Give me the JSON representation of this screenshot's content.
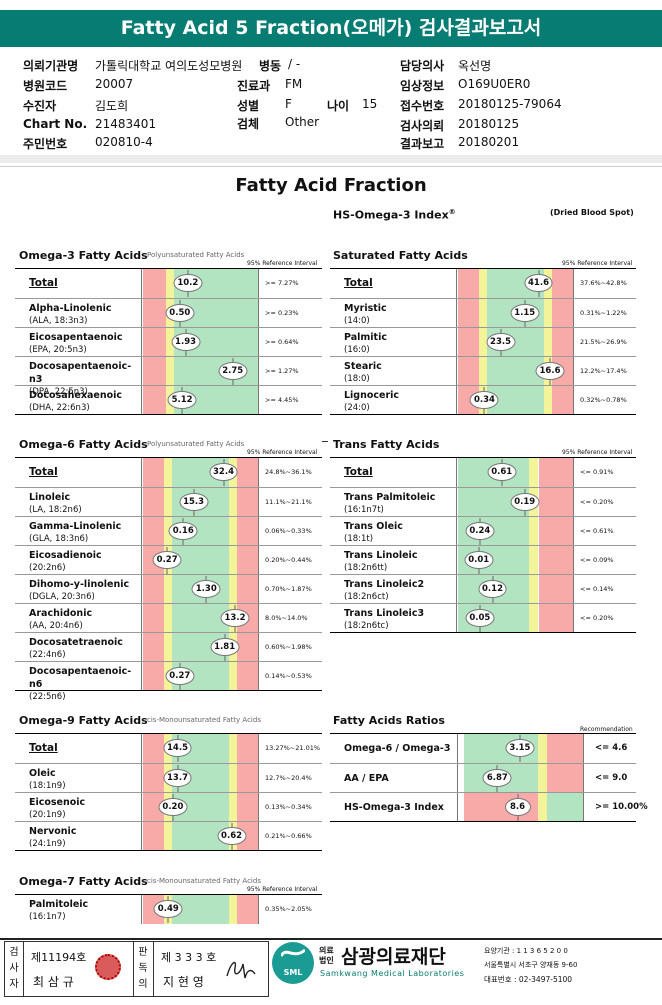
{
  "header": {
    "title": "Fatty Acid 5 Fraction(오메가) 검사결과보고서"
  },
  "patient": {
    "institution_label": "의뢰기관명",
    "institution_value": "가톨릭대학교 여의도성모병원",
    "ward_label": "병동",
    "ward_value": "/ -",
    "doctor_label": "담당의사",
    "doctor_value": "옥선명",
    "hosp_code_label": "병원코드",
    "hosp_code_value": "20007",
    "dept_label": "진료과",
    "dept_value": "FM",
    "clinical_label": "임상정보",
    "clinical_value": "O169U0ER0",
    "examinee_label": "수진자",
    "examinee_value": "김도희",
    "sex_label": "성별",
    "sex_value": "F",
    "age_label": "나이",
    "age_value": "15",
    "receipt_label": "접수번호",
    "receipt_value": "20180125-79064",
    "chart_label": "Chart No.",
    "chart_value": "21483401",
    "specimen_label": "검체",
    "specimen_value": "Other",
    "request_label": "검사의뢰",
    "request_value": "20180125",
    "ssn_label": "주민번호",
    "ssn_value": "020810-4",
    "report_label": "결과보고",
    "report_value": "20180201"
  },
  "report": {
    "title": "Fatty Acid Fraction",
    "hs_index": "HS-Omega-3 Index",
    "hs_sup": "®",
    "dried": "(Dried Blood Spot)",
    "ref_label": "95% Reference Interval",
    "ref_label2": "Recommendation"
  },
  "colors": {
    "red": "#f7aaa8",
    "green": "#b2e4c2",
    "yellow": "#f3f39a",
    "teal": "#077c72"
  },
  "sections": {
    "omega3": {
      "title": "Omega-3 Fatty Acids",
      "subtitle": "Polyunsaturated Fatty Acids",
      "rows": [
        {
          "name": "Total",
          "abbr": "",
          "value": "10.2",
          "range": ">= 7.27%",
          "pos": 0.39,
          "zones": "gh"
        },
        {
          "name": "Alpha-Linolenic",
          "abbr": "(ALA, 18:3n3)",
          "value": "0.50",
          "range": ">= 0.23%",
          "pos": 0.32,
          "zones": "gh"
        },
        {
          "name": "Eicosapentaenoic",
          "abbr": "(EPA, 20:5n3)",
          "value": "1.93",
          "range": ">= 0.64%",
          "pos": 0.37,
          "zones": "gh"
        },
        {
          "name": "Docosapentaenoic-n3",
          "abbr": "(DPA, 22:5n3)",
          "value": "2.75",
          "range": ">= 1.27%",
          "pos": 0.78,
          "zones": "gh"
        },
        {
          "name": "Docosahexaenoic",
          "abbr": "(DHA, 22:6n3)",
          "value": "5.12",
          "range": ">= 4.45%",
          "pos": 0.34,
          "zones": "gh"
        }
      ]
    },
    "sat": {
      "title": "Saturated Fatty Acids",
      "rows": [
        {
          "name": "Total",
          "abbr": "",
          "value": "41.6",
          "range": "37.6%~42.8%",
          "pos": 0.7,
          "zones": "mid"
        },
        {
          "name": "Myristic",
          "abbr": "(14:0)",
          "value": "1.15",
          "range": "0.31%~1.22%",
          "pos": 0.58,
          "zones": "mid"
        },
        {
          "name": "Palmitic",
          "abbr": "(16:0)",
          "value": "23.5",
          "range": "21.5%~26.9%",
          "pos": 0.37,
          "zones": "mid"
        },
        {
          "name": "Stearic",
          "abbr": "(18:0)",
          "value": "16.6",
          "range": "12.2%~17.4%",
          "pos": 0.8,
          "zones": "mid"
        },
        {
          "name": "Lignoceric",
          "abbr": "(24:0)",
          "value": "0.34",
          "range": "0.32%~0.78%",
          "pos": 0.23,
          "zones": "mid"
        }
      ]
    },
    "omega6": {
      "title": "Omega-6 Fatty Acids",
      "subtitle": "Polyunsaturated Fatty Acids",
      "rows": [
        {
          "name": "Total",
          "abbr": "",
          "value": "32.4",
          "range": "24.8%~36.1%",
          "pos": 0.7,
          "zones": "mid"
        },
        {
          "name": "Linoleic",
          "abbr": "(LA, 18:2n6)",
          "value": "15.3",
          "range": "11.1%~21.1%",
          "pos": 0.44,
          "zones": "mid"
        },
        {
          "name": "Gamma-Linolenic",
          "abbr": "(GLA, 18:3n6)",
          "value": "0.16",
          "range": "0.06%~0.33%",
          "pos": 0.35,
          "zones": "mid"
        },
        {
          "name": "Eicosadienoic",
          "abbr": "(20:2n6)",
          "value": "0.27",
          "range": "0.20%~0.44%",
          "pos": 0.21,
          "zones": "mid"
        },
        {
          "name": "Dihomo-y-linolenic",
          "abbr": "(DGLA, 20:3n6)",
          "value": "1.30",
          "range": "0.70%~1.87%",
          "pos": 0.55,
          "zones": "mid"
        },
        {
          "name": "Arachidonic",
          "abbr": "(AA, 20:4n6)",
          "value": "13.2",
          "range": "8.0%~14.0%",
          "pos": 0.8,
          "zones": "mid"
        },
        {
          "name": "Docosatetraenoic",
          "abbr": "(22:4n6)",
          "value": "1.81",
          "range": "0.60%~1.98%",
          "pos": 0.71,
          "zones": "mid"
        },
        {
          "name": "Docosapentaenoic-n6",
          "abbr": "(22:5n6)",
          "value": "0.27",
          "range": "0.14%~0.53%",
          "pos": 0.32,
          "zones": "mid"
        }
      ]
    },
    "trans": {
      "title": "Trans Fatty Acids",
      "rows": [
        {
          "name": "Total",
          "abbr": "",
          "value": "0.61",
          "range": "<= 0.91%",
          "pos": 0.38,
          "zones": "lo"
        },
        {
          "name": "Trans Palmitoleic",
          "abbr": "(16:1n7t)",
          "value": "0.19",
          "range": "<= 0.20%",
          "pos": 0.58,
          "zones": "lo"
        },
        {
          "name": "Trans Oleic",
          "abbr": "(18:1t)",
          "value": "0.24",
          "range": "<= 0.61%",
          "pos": 0.19,
          "zones": "lo"
        },
        {
          "name": "Trans Linoleic",
          "abbr": "(18:2n6tt)",
          "value": "0.01",
          "range": "<= 0.09%",
          "pos": 0.18,
          "zones": "lo"
        },
        {
          "name": "Trans Linoleic2",
          "abbr": "(18:2n6ct)",
          "value": "0.12",
          "range": "<= 0.14%",
          "pos": 0.3,
          "zones": "lo"
        },
        {
          "name": "Trans Linoleic3",
          "abbr": "(18:2n6tc)",
          "value": "0.05",
          "range": "<= 0.20%",
          "pos": 0.19,
          "zones": "lo"
        }
      ]
    },
    "omega9": {
      "title": "Omega-9 Fatty Acids",
      "subtitle": "cis-Monounsaturated Fatty Acids",
      "rows": [
        {
          "name": "Total",
          "abbr": "",
          "value": "14.5",
          "range": "13.27%~21.01%",
          "pos": 0.3,
          "zones": "mid"
        },
        {
          "name": "Oleic",
          "abbr": "(18:1n9)",
          "value": "13.7",
          "range": "12.7%~20.4%",
          "pos": 0.3,
          "zones": "mid"
        },
        {
          "name": "Eicosenoic",
          "abbr": "(20:1n9)",
          "value": "0.20",
          "range": "0.13%~0.34%",
          "pos": 0.26,
          "zones": "mid"
        },
        {
          "name": "Nervonic",
          "abbr": "(24:1n9)",
          "value": "0.62",
          "range": "0.21%~0.66%",
          "pos": 0.77,
          "zones": "mid"
        }
      ]
    },
    "ratios": {
      "title": "Fatty Acids Ratios",
      "rows": [
        {
          "name": "Omega-6 / Omega-3",
          "value": "3.15",
          "range": "<= 4.6",
          "pos": 0.47,
          "zones": "lo"
        },
        {
          "name": "AA / EPA",
          "value": "6.87",
          "range": "<= 9.0",
          "pos": 0.28,
          "zones": "lo"
        },
        {
          "name": "HS-Omega-3 Index",
          "value": "8.6",
          "range": ">= 10.00%",
          "pos": 0.45,
          "zones": "hi"
        }
      ]
    },
    "omega7": {
      "title": "Omega-7 Fatty Acids",
      "subtitle": "cis-Monounsaturated Fatty Acids",
      "rows": [
        {
          "name": "Palmitoleic",
          "abbr": "(16:1n7)",
          "value": "0.49",
          "range": "0.35%~2.05%",
          "pos": 0.22,
          "zones": "mid"
        }
      ]
    }
  },
  "footer": {
    "examiner_label": "검사자",
    "examiner_no": "제11194호",
    "examiner_name": "최 삼 규",
    "reviewer_label": "판독의",
    "reviewer_no": "제 3 3 3 호",
    "reviewer_name": "지 현 영",
    "org_prefix": "의료법인",
    "org_name": "삼광의료재단",
    "org_en": "Samkwang Medical Laboratories",
    "logo_text": "SML",
    "code": "요양기관 : 1 1 3 6 5 2 0 0",
    "addr": "서울특별시 서초구 양재동 9-60",
    "phone": "대표번호 : 02-3497-5100"
  }
}
